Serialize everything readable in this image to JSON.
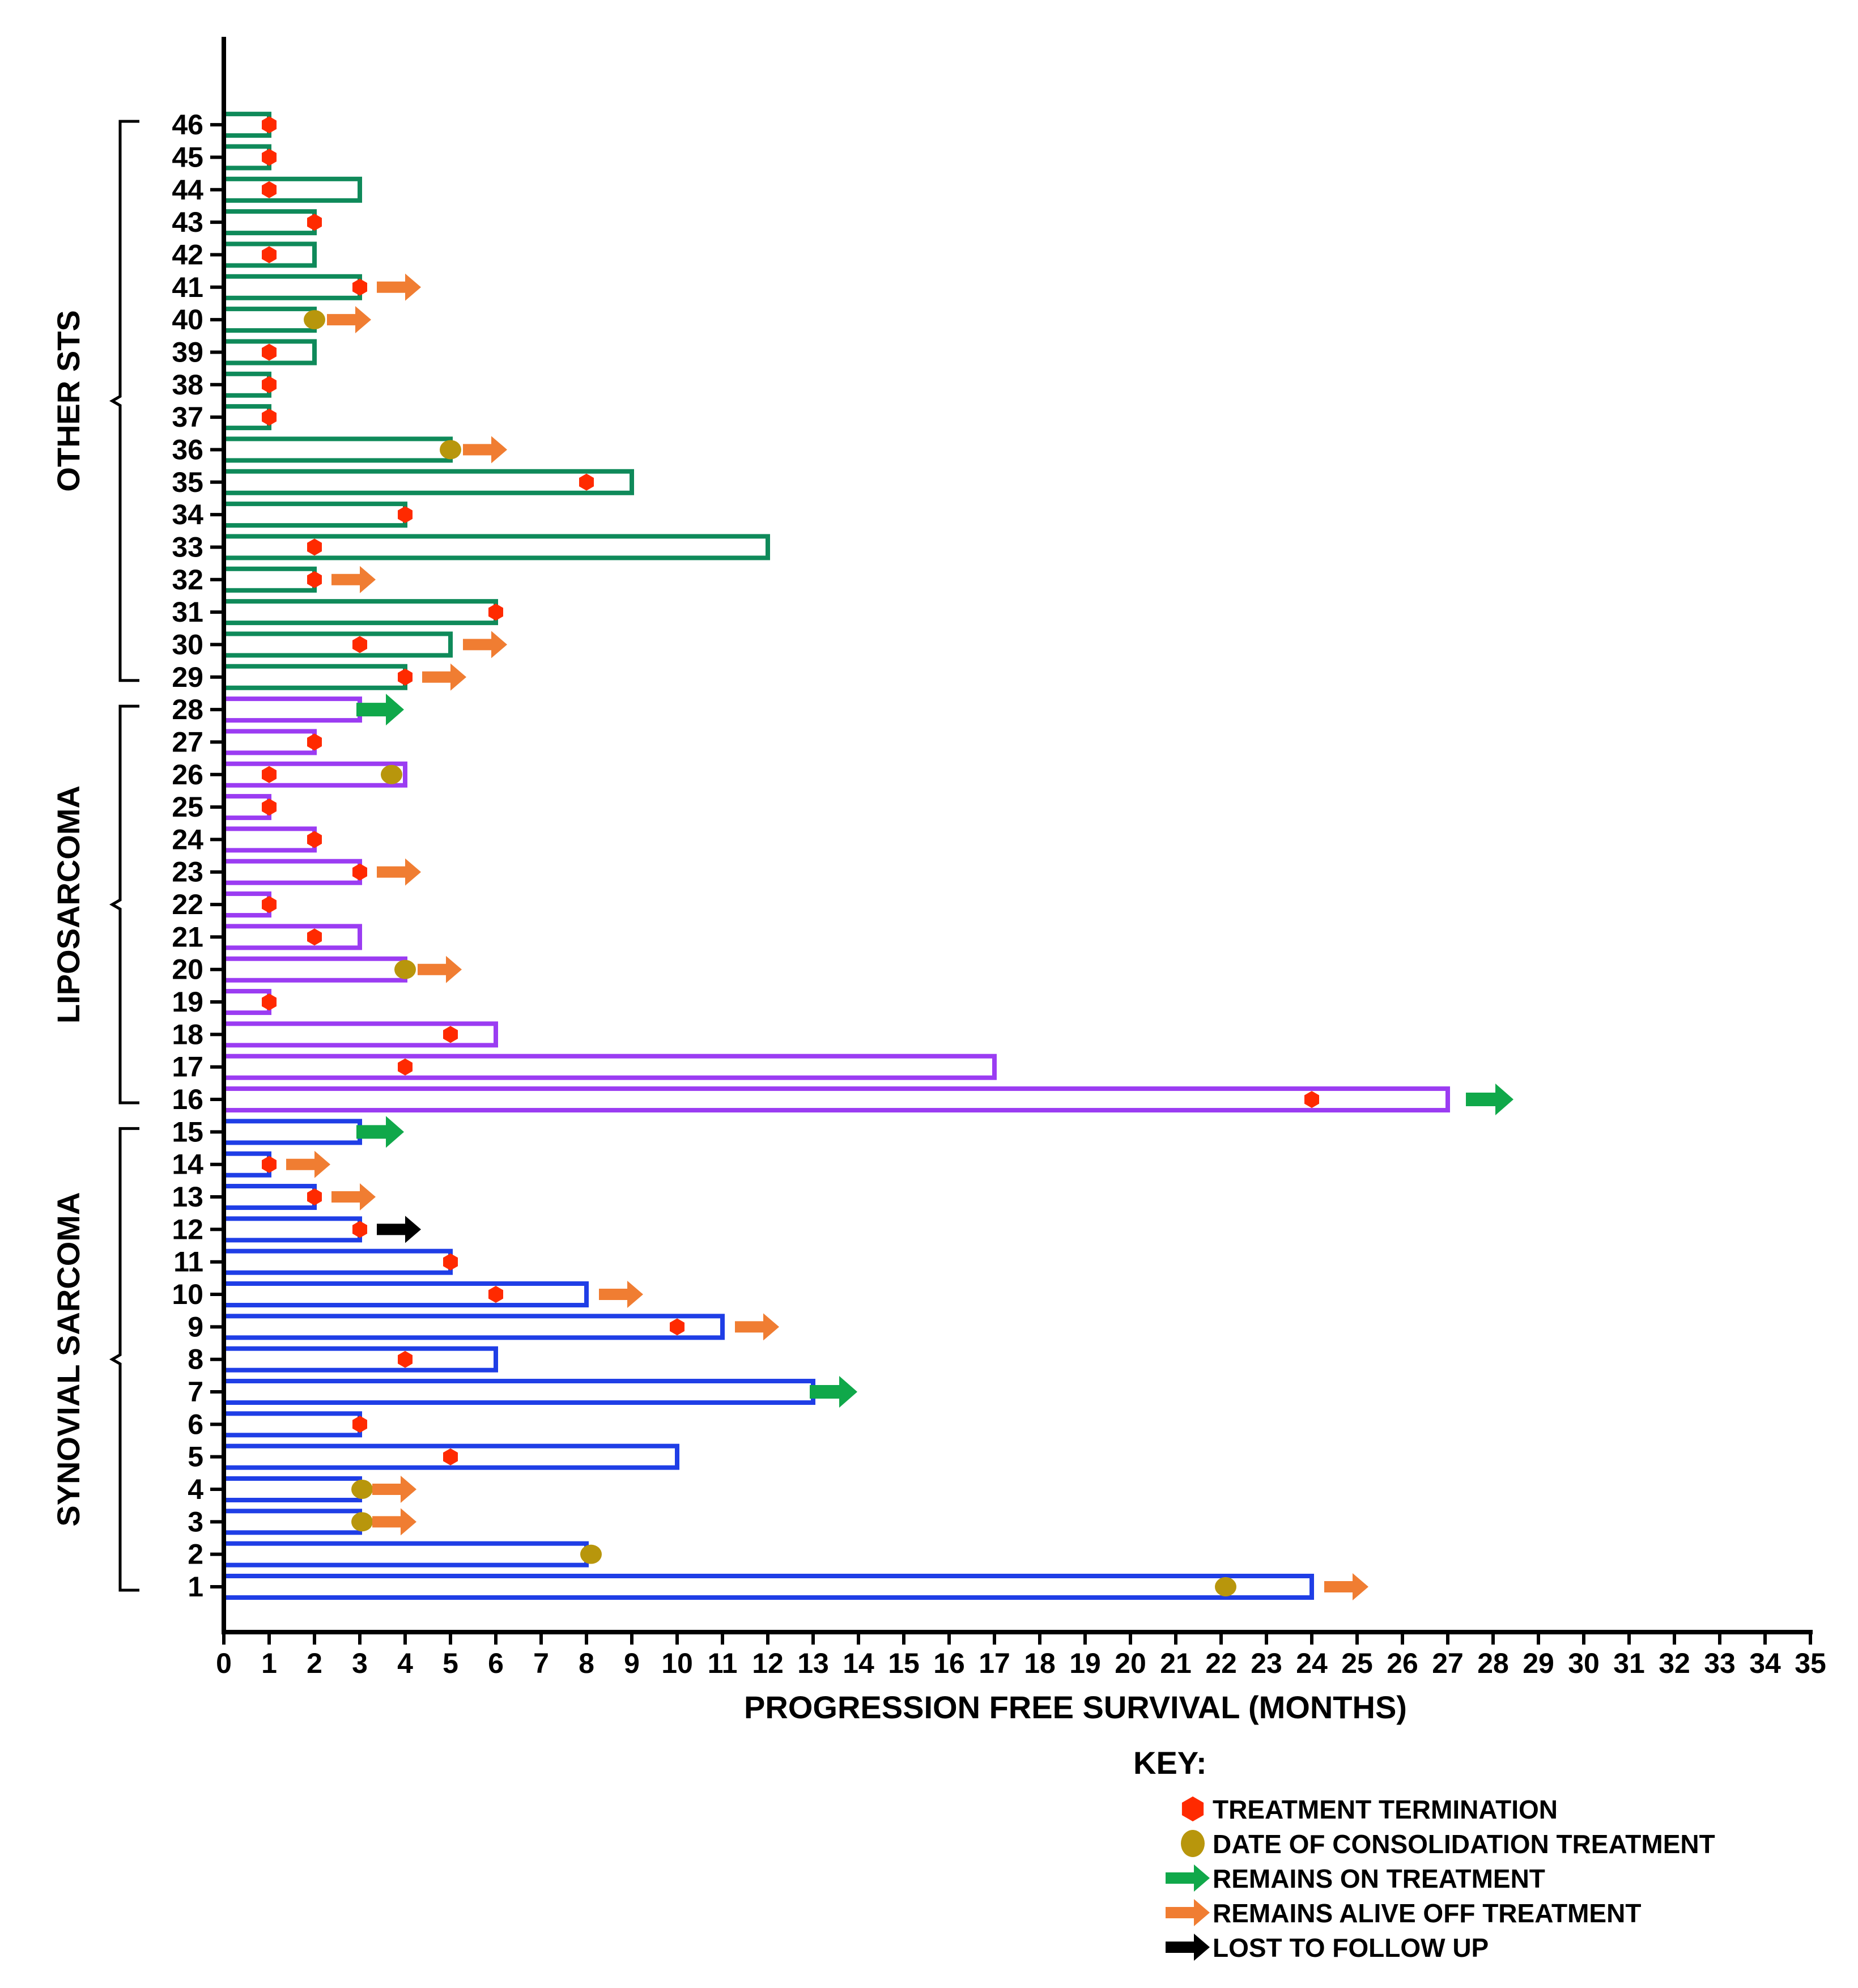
{
  "chart_data": {
    "type": "swimmer",
    "xlabel": "PROGRESSION FREE SURVIVAL (MONTHS)",
    "xlim": [
      0,
      35
    ],
    "xticks": [
      0,
      1,
      2,
      3,
      4,
      5,
      6,
      7,
      8,
      9,
      10,
      11,
      12,
      13,
      14,
      15,
      16,
      17,
      18,
      19,
      20,
      21,
      22,
      23,
      24,
      25,
      26,
      27,
      28,
      29,
      30,
      31,
      32,
      33,
      34,
      35
    ],
    "groups": [
      {
        "label": "SYNOVIAL SARCOMA",
        "color": "#1f3ee6",
        "patients": [
          1,
          15
        ]
      },
      {
        "label": "LIPOSARCOMA",
        "color": "#9b3cf2",
        "patients": [
          16,
          28
        ]
      },
      {
        "label": "OTHER STS",
        "color": "#0f8a5a",
        "patients": [
          29,
          46
        ]
      }
    ],
    "patients": [
      {
        "id": 1,
        "pfs": 24,
        "consolidation": 22.1,
        "arrow": "alive"
      },
      {
        "id": 2,
        "pfs": 8,
        "consolidation": 8.1
      },
      {
        "id": 3,
        "pfs": 3,
        "consolidation": 3.05,
        "arrow": "alive"
      },
      {
        "id": 4,
        "pfs": 3,
        "consolidation": 3.05,
        "arrow": "alive"
      },
      {
        "id": 5,
        "pfs": 10,
        "termination": 5
      },
      {
        "id": 6,
        "pfs": 3,
        "termination": 3
      },
      {
        "id": 7,
        "pfs": 13,
        "arrow": "on"
      },
      {
        "id": 8,
        "pfs": 6,
        "termination": 4
      },
      {
        "id": 9,
        "pfs": 11,
        "termination": 10,
        "arrow": "alive"
      },
      {
        "id": 10,
        "pfs": 8,
        "termination": 6,
        "arrow": "alive"
      },
      {
        "id": 11,
        "pfs": 5,
        "termination": 5
      },
      {
        "id": 12,
        "pfs": 3,
        "termination": 3,
        "arrow": "lost"
      },
      {
        "id": 13,
        "pfs": 2,
        "termination": 2,
        "arrow": "alive"
      },
      {
        "id": 14,
        "pfs": 1,
        "termination": 1,
        "arrow": "alive"
      },
      {
        "id": 15,
        "pfs": 3,
        "arrow": "on"
      },
      {
        "id": 16,
        "pfs": 27,
        "termination": 24,
        "arrow": "on"
      },
      {
        "id": 17,
        "pfs": 17,
        "termination": 4
      },
      {
        "id": 18,
        "pfs": 6,
        "termination": 5
      },
      {
        "id": 19,
        "pfs": 1,
        "termination": 1
      },
      {
        "id": 20,
        "pfs": 4,
        "consolidation": 4,
        "arrow": "alive"
      },
      {
        "id": 21,
        "pfs": 3,
        "termination": 2
      },
      {
        "id": 22,
        "pfs": 1,
        "termination": 1
      },
      {
        "id": 23,
        "pfs": 3,
        "termination": 3,
        "arrow": "alive"
      },
      {
        "id": 24,
        "pfs": 2,
        "termination": 2
      },
      {
        "id": 25,
        "pfs": 1,
        "termination": 1
      },
      {
        "id": 26,
        "pfs": 4,
        "termination": 1,
        "consolidation": 3.7
      },
      {
        "id": 27,
        "pfs": 2,
        "termination": 2
      },
      {
        "id": 28,
        "pfs": 3,
        "arrow": "on"
      },
      {
        "id": 29,
        "pfs": 4,
        "termination": 4,
        "arrow": "alive"
      },
      {
        "id": 30,
        "pfs": 5,
        "termination": 3,
        "arrow": "alive"
      },
      {
        "id": 31,
        "pfs": 6,
        "termination": 6
      },
      {
        "id": 32,
        "pfs": 2,
        "termination": 2,
        "arrow": "alive"
      },
      {
        "id": 33,
        "pfs": 12,
        "termination": 2
      },
      {
        "id": 34,
        "pfs": 4,
        "termination": 4
      },
      {
        "id": 35,
        "pfs": 9,
        "termination": 8
      },
      {
        "id": 36,
        "pfs": 5,
        "consolidation": 5,
        "arrow": "alive"
      },
      {
        "id": 37,
        "pfs": 1,
        "termination": 1
      },
      {
        "id": 38,
        "pfs": 1,
        "termination": 1
      },
      {
        "id": 39,
        "pfs": 2,
        "termination": 1
      },
      {
        "id": 40,
        "pfs": 2,
        "consolidation": 2,
        "arrow": "alive"
      },
      {
        "id": 41,
        "pfs": 3,
        "termination": 3,
        "arrow": "alive"
      },
      {
        "id": 42,
        "pfs": 2,
        "termination": 1
      },
      {
        "id": 43,
        "pfs": 2,
        "termination": 2
      },
      {
        "id": 44,
        "pfs": 3,
        "termination": 1
      },
      {
        "id": 45,
        "pfs": 1,
        "termination": 1
      },
      {
        "id": 46,
        "pfs": 1,
        "termination": 1
      }
    ],
    "key": {
      "title": "KEY:",
      "items": [
        {
          "symbol": "termination",
          "label": "TREATMENT TERMINATION"
        },
        {
          "symbol": "consolidation",
          "label": "DATE OF CONSOLIDATION TREATMENT"
        },
        {
          "symbol": "on",
          "label": "REMAINS ON TREATMENT"
        },
        {
          "symbol": "alive",
          "label": "REMAINS ALIVE OFF TREATMENT"
        },
        {
          "symbol": "lost",
          "label": "LOST TO FOLLOW UP"
        }
      ]
    },
    "marker_colors": {
      "termination": "#ff2a00",
      "consolidation": "#b8960c",
      "on": "#10a84a",
      "alive": "#f07d32",
      "lost": "#000000"
    }
  }
}
